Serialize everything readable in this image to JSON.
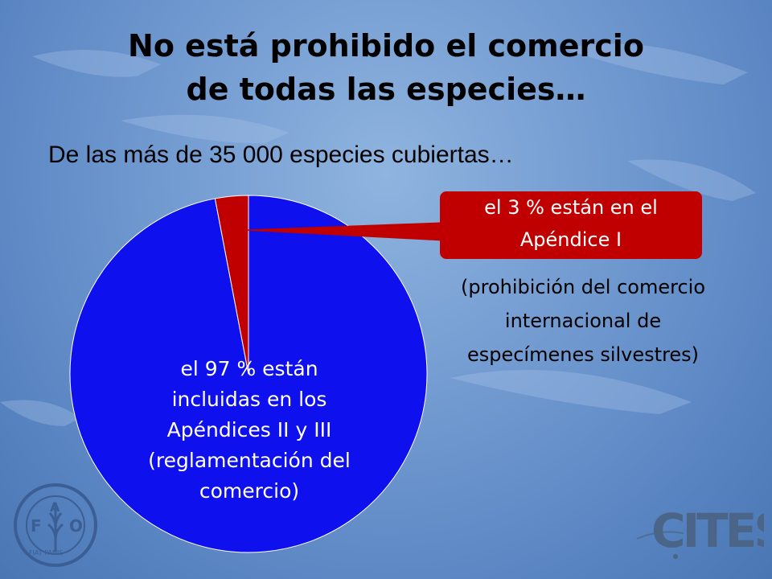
{
  "slide": {
    "title_line1": "No está prohibido el comercio",
    "title_line2": "de todas las especies…",
    "subtitle": "De las más de 35 000 especies cubiertas…"
  },
  "chart_data": {
    "type": "pie",
    "categories": [
      "Apéndices II y III",
      "Apéndice I"
    ],
    "values": [
      97,
      3
    ],
    "colors": [
      "#0f10ee",
      "#c00000"
    ],
    "labels": [
      [
        "el 97 % están",
        "incluidas en los",
        "Apéndices II y III",
        "(reglamentación del",
        "comercio)"
      ],
      [
        "el 3 % están en el",
        "Apéndice I"
      ]
    ]
  },
  "callout_note": [
    "(prohibición del comercio",
    "internacional de",
    "especímenes silvestres)"
  ],
  "logos": {
    "fao": {
      "letters": [
        "F",
        "A",
        "O"
      ],
      "motto": "FIAT PANIS"
    },
    "cites": {
      "text": "CITES"
    }
  }
}
